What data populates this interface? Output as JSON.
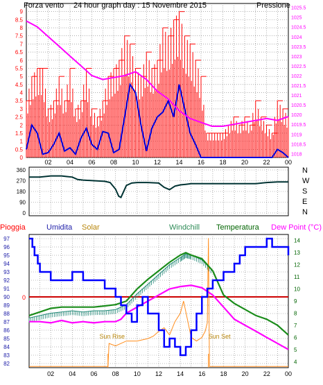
{
  "colors": {
    "wind_speed": "#ff0000",
    "wind_avg": "#0000dd",
    "pressure": "#ff00ff",
    "direction": "#003333",
    "rain": "#cc0000",
    "humidity": "#0000ff",
    "solar": "#ff8c1a",
    "windchill": "#228877",
    "temperature": "#1a8c1a",
    "dew_point": "#ff00ff",
    "grid": "#7a7a7a",
    "rain_label": "#ff0000",
    "humidity_label": "#2222aa",
    "solar_label": "#b8860b",
    "windchill_label": "#2e8b57",
    "temperature_label": "#006400",
    "dew_label": "#ff00ff",
    "title_label": "#0000aa"
  },
  "chart_data": [
    {
      "id": "wind-pressure",
      "type": "line",
      "title": "24 hour graph day : 15 Novembre 2015",
      "y_left_label": "Forza vento",
      "y_right_label": "Pressione",
      "x_ticks": [
        "02",
        "04",
        "06",
        "08",
        "10",
        "12",
        "14",
        "16",
        "18",
        "20",
        "22",
        "00"
      ],
      "x_tick_values": [
        2,
        4,
        6,
        8,
        10,
        12,
        14,
        16,
        18,
        20,
        22,
        24
      ],
      "xlim": [
        0,
        24
      ],
      "y_left_ticks": [
        "0",
        "0.5",
        "1",
        "1.5",
        "2",
        "2.5",
        "3",
        "3.5",
        "4",
        "4.5",
        "5",
        "5.5",
        "6",
        "6.5",
        "7",
        "7.5",
        "8",
        "8.5",
        "9"
      ],
      "y_left_tick_values": [
        0,
        0.5,
        1,
        1.5,
        2,
        2.5,
        3,
        3.5,
        4,
        4.5,
        5,
        5.5,
        6,
        6.5,
        7,
        7.5,
        8,
        8.5,
        9
      ],
      "ylim_left": [
        0,
        9.5
      ],
      "y_right_ticks": [
        "1018",
        "1018.5",
        "1019",
        "1019.5",
        "1020",
        "1020.5",
        "1021",
        "1021.5",
        "1022",
        "1022.5",
        "1023",
        "1023.5",
        "1024",
        "1024.5",
        "1025",
        "1025.5"
      ],
      "y_right_tick_values": [
        1018,
        1018.5,
        1019,
        1019.5,
        1020,
        1020.5,
        1021,
        1021.5,
        1022,
        1022.5,
        1023,
        1023.5,
        1024,
        1024.5,
        1025,
        1025.5
      ],
      "ylim_right": [
        1017.8,
        1025.7
      ],
      "grid": true,
      "series": [
        {
          "key": "wind_gust",
          "axis": "left",
          "style": "spikes",
          "x": [
            0,
            0.5,
            1,
            1.5,
            2,
            2.5,
            3,
            3.5,
            4,
            4.5,
            5,
            5.5,
            6,
            6.5,
            7,
            7.5,
            8,
            8.5,
            9,
            9.5,
            10,
            10.5,
            11,
            11.5,
            12,
            12.5,
            13,
            13.5,
            14,
            14.5,
            15,
            15.5,
            16,
            16.5,
            17,
            17.5,
            18,
            18.5,
            19,
            19.5,
            20,
            20.5,
            21,
            21.5,
            22,
            22.5,
            23,
            23.5,
            24
          ],
          "values": [
            3.5,
            5,
            5.5,
            5.5,
            3,
            3.5,
            5,
            3.5,
            5.5,
            3,
            3.5,
            5.5,
            3,
            2.5,
            3.5,
            5,
            5.5,
            6,
            7.5,
            7,
            5.5,
            5,
            6.5,
            5.5,
            6,
            8,
            7.5,
            8.5,
            9,
            7.5,
            7,
            6,
            5,
            1.5,
            1.5,
            1.5,
            1.5,
            2,
            2.5,
            2,
            2.5,
            2,
            3.5,
            2.5,
            2,
            1.5,
            3.5,
            3,
            2.5
          ]
        },
        {
          "key": "wind_avg",
          "axis": "left",
          "style": "line",
          "x": [
            0,
            0.5,
            1,
            1.5,
            2,
            2.5,
            3,
            3.5,
            4,
            4.5,
            5,
            5.5,
            6,
            6.5,
            7,
            7.5,
            8,
            8.5,
            9,
            9.5,
            10,
            10.5,
            11,
            11.5,
            12,
            12.5,
            13,
            13.5,
            14,
            14.5,
            15,
            15.5,
            16,
            16.5,
            17,
            17.5,
            18,
            18.5,
            19,
            19.5,
            20,
            20.5,
            21,
            21.5,
            22,
            22.5,
            23,
            23.5,
            24
          ],
          "values": [
            0.5,
            2,
            1.5,
            0.2,
            0.3,
            0.8,
            1.5,
            0.4,
            0.6,
            0.2,
            1.2,
            1.8,
            0.8,
            0.5,
            1.6,
            1.5,
            0.3,
            0.5,
            2.5,
            4.5,
            4,
            2,
            0.4,
            1.8,
            2.5,
            2.8,
            3.5,
            2.5,
            4.5,
            3,
            1.5,
            0.8,
            0,
            0,
            0,
            0,
            0,
            0,
            0,
            0,
            0,
            0,
            0,
            0,
            0,
            0,
            0.5,
            0.3,
            0
          ]
        },
        {
          "key": "pressure",
          "axis": "right",
          "style": "line",
          "x": [
            0,
            1,
            2,
            3,
            4,
            5,
            6,
            7,
            8,
            9,
            10,
            11,
            12,
            13,
            14,
            15,
            16,
            17,
            18,
            19,
            20,
            21,
            22,
            23,
            24
          ],
          "values": [
            1024.8,
            1024.5,
            1024,
            1023.5,
            1023,
            1022.5,
            1022,
            1021.8,
            1021.9,
            1022,
            1022.2,
            1021.8,
            1021.2,
            1020.8,
            1020.2,
            1019.8,
            1019.6,
            1019.4,
            1019.4,
            1019.5,
            1019.6,
            1019.7,
            1019.8,
            1019.7,
            1019.9
          ]
        }
      ]
    },
    {
      "id": "wind-direction",
      "type": "line",
      "y_ticks": [
        "0",
        "90",
        "180",
        "270",
        "360"
      ],
      "y_tick_values": [
        0,
        90,
        180,
        270,
        360
      ],
      "ylim": [
        0,
        360
      ],
      "xlim": [
        0,
        24
      ],
      "compass_labels": [
        "N",
        "W",
        "S",
        "E",
        "N"
      ],
      "grid": true,
      "series": [
        {
          "key": "direction",
          "x": [
            0,
            1,
            2,
            3,
            3.5,
            4,
            4.5,
            5,
            6,
            7,
            7.5,
            8,
            8.3,
            8.5,
            9,
            9.5,
            10,
            11,
            12,
            12.5,
            13,
            13.5,
            14,
            14.5,
            15,
            16,
            17,
            18,
            19,
            20,
            21,
            22,
            23,
            24
          ],
          "values": [
            300,
            300,
            310,
            310,
            305,
            300,
            280,
            275,
            270,
            265,
            255,
            200,
            140,
            130,
            230,
            250,
            255,
            255,
            250,
            215,
            195,
            225,
            235,
            240,
            245,
            245,
            245,
            245,
            245,
            245,
            245,
            255,
            260,
            260
          ]
        }
      ]
    },
    {
      "id": "temperature-humidity",
      "type": "line",
      "legend": [
        "Pioggia",
        "Umidita",
        "Solar",
        "Windchill",
        "Temperatura",
        "Dew Point (°C)"
      ],
      "x_ticks": [
        "02",
        "04",
        "06",
        "08",
        "10",
        "12",
        "14",
        "16",
        "18",
        "20",
        "22",
        "00"
      ],
      "x_tick_values": [
        2,
        4,
        6,
        8,
        10,
        12,
        14,
        16,
        18,
        20,
        22,
        24
      ],
      "xlim": [
        0,
        24
      ],
      "y_left_ticks": [
        "82",
        "83",
        "84",
        "85",
        "86",
        "87",
        "88",
        "89",
        "90",
        "91",
        "92",
        "93",
        "94",
        "95",
        "96",
        "97"
      ],
      "y_left_tick_values": [
        82,
        83,
        84,
        85,
        86,
        87,
        88,
        89,
        90,
        91,
        92,
        93,
        94,
        95,
        96,
        97
      ],
      "ylim_left": [
        81.5,
        97.5
      ],
      "y_right_ticks": [
        "4",
        "5",
        "6",
        "7",
        "8",
        "9",
        "10",
        "11",
        "12",
        "13",
        "14"
      ],
      "y_right_tick_values": [
        4,
        5,
        6,
        7,
        8,
        9,
        10,
        11,
        12,
        13,
        14
      ],
      "ylim_right": [
        3.5,
        14.5
      ],
      "rain_label": "0",
      "rain_level": 90,
      "annotations": [
        {
          "text": "Sun Rise",
          "x": 7.3
        },
        {
          "text": "Sun Set",
          "x": 16.6
        }
      ],
      "grid": true,
      "series": [
        {
          "key": "humidity",
          "axis": "left",
          "x": [
            0,
            0.3,
            0.5,
            0.8,
            1,
            1.5,
            2,
            3,
            4,
            5,
            6,
            7,
            8,
            8.5,
            9,
            9.5,
            10,
            10.5,
            11,
            12,
            12.5,
            13,
            13.5,
            14,
            14.5,
            15,
            15.5,
            16,
            16.5,
            17,
            18,
            19,
            19.5,
            20,
            21,
            22,
            22.5,
            23,
            24
          ],
          "values": [
            97,
            96,
            95,
            94,
            93,
            93,
            92,
            92,
            93,
            92,
            92,
            91,
            90,
            89,
            88,
            87,
            89,
            90,
            88,
            86,
            84,
            85,
            84,
            83,
            84,
            86,
            88,
            90,
            91,
            92,
            93,
            94,
            95,
            96,
            96,
            97,
            96,
            96,
            95
          ]
        },
        {
          "key": "temperature",
          "axis": "right",
          "x": [
            0,
            1,
            2,
            3,
            4,
            5,
            6,
            7,
            8,
            9,
            10,
            11,
            12,
            13,
            14,
            14.5,
            15,
            16,
            17,
            18,
            19,
            20,
            21,
            22,
            23,
            24
          ],
          "values": [
            7.8,
            8.1,
            8.4,
            8.5,
            8.5,
            8.5,
            8.5,
            8.6,
            8.7,
            9,
            10,
            10.8,
            11.5,
            12.2,
            12.8,
            13,
            12.8,
            12.5,
            11.5,
            9.5,
            8.8,
            8.3,
            7.8,
            7.5,
            7,
            6.2
          ]
        },
        {
          "key": "windchill",
          "axis": "right",
          "x": [
            0,
            1,
            2,
            3,
            4,
            5,
            6,
            7,
            8,
            9,
            10,
            11,
            12,
            13,
            14,
            14.5,
            15,
            16,
            17
          ],
          "values": [
            7.6,
            7.8,
            8,
            8.1,
            8.2,
            8.1,
            8.2,
            8.2,
            8.3,
            8.7,
            9.6,
            10.4,
            11.2,
            12,
            12.6,
            12.9,
            12.8,
            12.4,
            11.5
          ]
        },
        {
          "key": "dew_point",
          "axis": "right",
          "x": [
            0,
            1,
            2,
            3,
            4,
            5,
            6,
            7,
            8,
            8.5,
            9,
            10,
            11,
            12,
            13,
            14,
            15,
            16,
            17,
            18,
            19,
            20,
            21,
            22,
            23,
            24
          ],
          "values": [
            7.3,
            7.3,
            7.2,
            7.4,
            7.2,
            7.3,
            7.2,
            7.3,
            7.3,
            7.5,
            8,
            8.5,
            9,
            9.5,
            10,
            10.2,
            10.3,
            10.1,
            9.5,
            8.5,
            7.5,
            7,
            6.5,
            6,
            5.5,
            5
          ]
        },
        {
          "key": "solar",
          "axis": "right",
          "style": "solar",
          "x": [
            0,
            7.3,
            7.4,
            8,
            9,
            10,
            11,
            11.5,
            12,
            12.5,
            13,
            13.5,
            14,
            14.3,
            14.7,
            15,
            15.5,
            16,
            16.3,
            16.5,
            16.6,
            16.7,
            16.8,
            24
          ],
          "values": [
            3.6,
            3.6,
            5.5,
            5.3,
            5.7,
            5.7,
            5.9,
            6.1,
            6.5,
            6.8,
            6.2,
            7.3,
            8,
            9,
            7.3,
            6,
            5.7,
            6,
            6.5,
            7.2,
            14.2,
            3.6,
            3.6,
            3.6
          ]
        }
      ]
    }
  ]
}
